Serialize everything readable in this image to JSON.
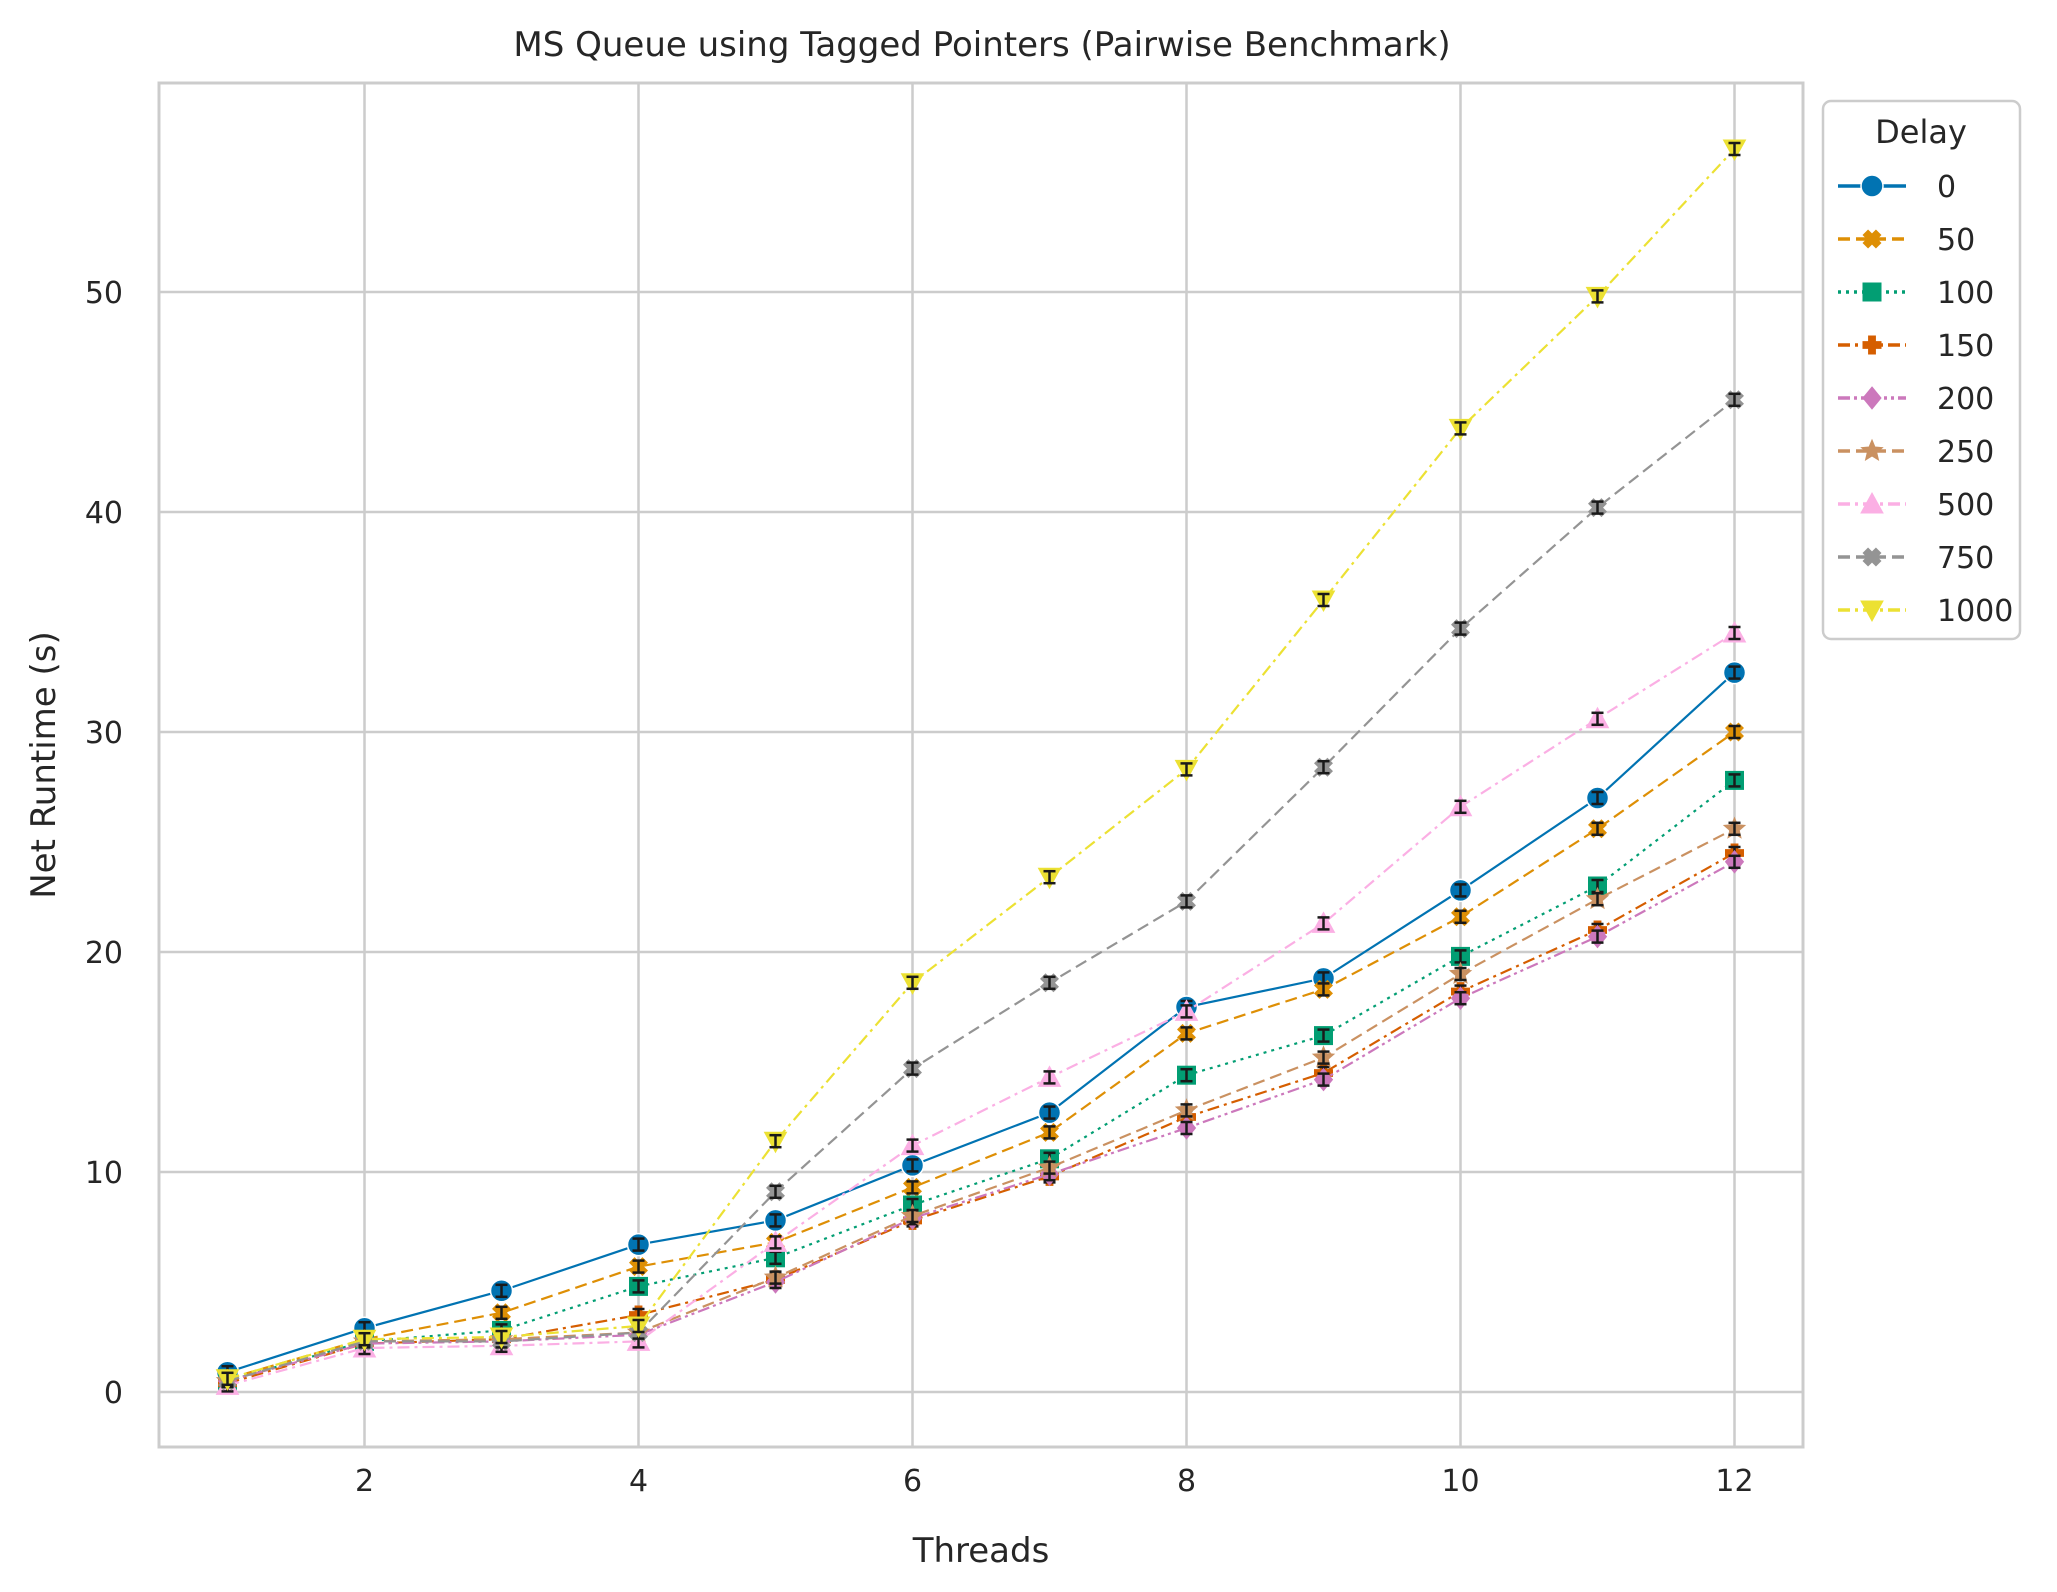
{
  "chart_data": {
    "type": "line",
    "title": "MS Queue using Tagged Pointers (Pairwise Benchmark)",
    "xlabel": "Threads",
    "ylabel": "Net Runtime (s)",
    "xlim": [
      0.5,
      12.5
    ],
    "ylim": [
      -2.5,
      59.5
    ],
    "xticks": [
      2,
      4,
      6,
      8,
      10,
      12
    ],
    "yticks": [
      0,
      10,
      20,
      30,
      40,
      50
    ],
    "grid": true,
    "legend": {
      "title": "Delay",
      "placement": "outside-top-right"
    },
    "x": [
      1,
      2,
      3,
      4,
      5,
      6,
      7,
      8,
      9,
      10,
      11,
      12
    ],
    "series": [
      {
        "name": "0",
        "color": "#0173b2",
        "marker": "circle",
        "dash": "solid",
        "values": [
          0.9,
          2.9,
          4.6,
          6.7,
          7.8,
          10.3,
          12.7,
          17.5,
          18.8,
          22.8,
          27.0,
          32.7
        ]
      },
      {
        "name": "50",
        "color": "#de8f05",
        "marker": "x",
        "dash": "dashed",
        "values": [
          0.6,
          2.4,
          3.6,
          5.7,
          6.8,
          9.3,
          11.8,
          16.3,
          18.3,
          21.6,
          25.6,
          30.0
        ]
      },
      {
        "name": "100",
        "color": "#029e73",
        "marker": "square",
        "dash": "dotted",
        "values": [
          0.5,
          2.3,
          2.8,
          4.8,
          6.1,
          8.5,
          10.6,
          14.4,
          16.2,
          19.8,
          23.0,
          27.8
        ]
      },
      {
        "name": "150",
        "color": "#d55e00",
        "marker": "plus",
        "dash": "dashdot",
        "values": [
          0.4,
          2.2,
          2.4,
          3.5,
          5.1,
          7.8,
          9.8,
          12.5,
          14.5,
          18.2,
          21.0,
          24.5
        ]
      },
      {
        "name": "200",
        "color": "#cc78bc",
        "marker": "diamond",
        "dash": "dashdotdot",
        "values": [
          0.5,
          2.2,
          2.3,
          2.6,
          5.0,
          7.9,
          9.9,
          12.0,
          14.2,
          17.9,
          20.7,
          24.1
        ]
      },
      {
        "name": "250",
        "color": "#ca9161",
        "marker": "star",
        "dash": "dashed",
        "values": [
          0.5,
          2.3,
          2.4,
          2.7,
          5.2,
          8.0,
          10.2,
          12.8,
          15.2,
          19.0,
          22.4,
          25.6
        ]
      },
      {
        "name": "500",
        "color": "#fbafe4",
        "marker": "triangle-up",
        "dash": "dashdot",
        "values": [
          0.3,
          2.0,
          2.1,
          2.3,
          6.8,
          11.2,
          14.3,
          17.3,
          21.3,
          26.6,
          30.6,
          34.5
        ]
      },
      {
        "name": "750",
        "color": "#949494",
        "marker": "x",
        "dash": "dashed",
        "values": [
          0.5,
          2.3,
          2.3,
          2.7,
          9.1,
          14.7,
          18.6,
          22.3,
          28.4,
          34.7,
          40.2,
          45.1
        ]
      },
      {
        "name": "1000",
        "color": "#ece133",
        "marker": "triangle-down",
        "dash": "dashdot",
        "values": [
          0.6,
          2.4,
          2.5,
          3.0,
          11.4,
          18.6,
          23.4,
          28.3,
          36.0,
          43.8,
          49.8,
          56.5
        ]
      }
    ]
  }
}
